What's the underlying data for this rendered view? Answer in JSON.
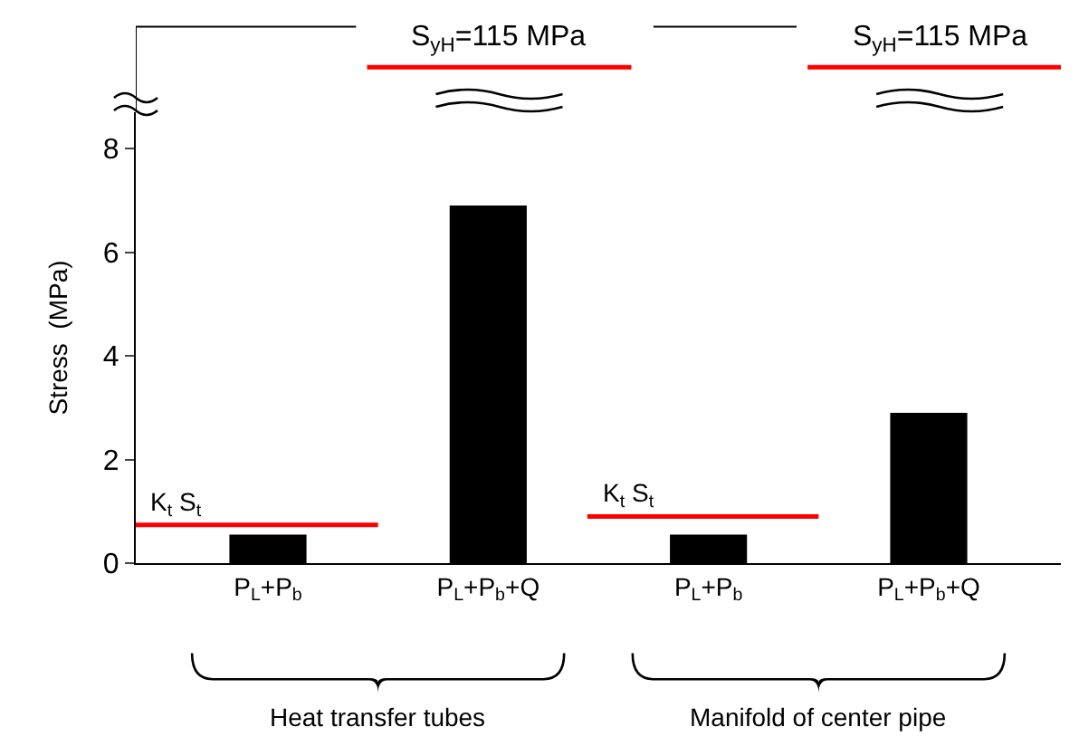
{
  "chart_data": {
    "type": "bar",
    "ylabel": "Stress  (MPa)",
    "categories": [
      "P$_{L}$+P$_{b}$",
      "P$_{L}$+P$_{b}$+Q",
      "P$_{L}$+P$_{b}$",
      "P$_{L}$+P$_{b}$+Q"
    ],
    "values": [
      0.55,
      6.9,
      0.55,
      2.9
    ],
    "color": "#000000",
    "ylim": [
      0,
      8.7
    ],
    "yticks": [
      0,
      2,
      4,
      6,
      8
    ],
    "grid": false,
    "ref_lines": [
      {
        "axis": "y",
        "value": 0.74,
        "label": "K$_{t}$ S$_{t}$",
        "color": "#ff0000"
      },
      {
        "axis": "y",
        "value": 0.9,
        "label": "K$_{t}$ S$_{t}$",
        "color": "#ff0000"
      }
    ],
    "annotations": [
      "S$_{yH}$=115 MPa",
      "S$_{yH}$=115 MPa",
      "Heat transfer tubes",
      "Manifold of center pipe"
    ]
  }
}
